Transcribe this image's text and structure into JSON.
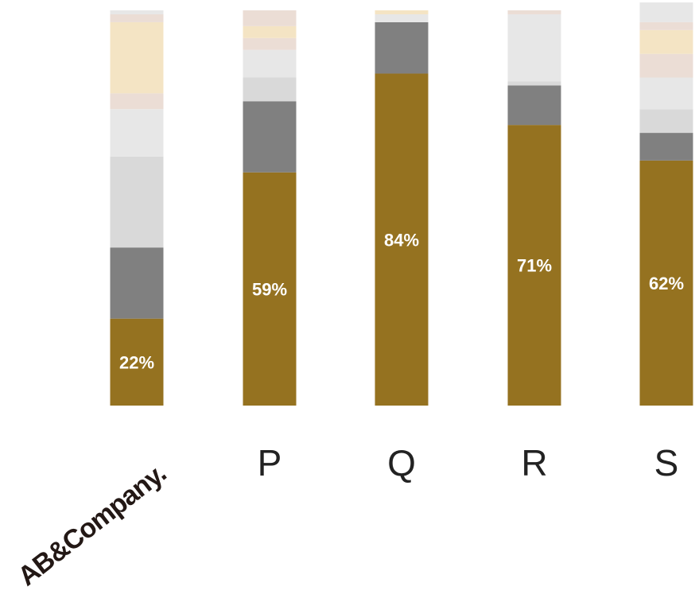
{
  "chart_data": {
    "type": "bar",
    "stacked": true,
    "grid": false,
    "legend": "none",
    "categories": [
      "AB&Company",
      "P",
      "Q",
      "R",
      "S"
    ],
    "category_labels": [
      "",
      "P",
      "Q",
      "R",
      "S"
    ],
    "ylim": [
      0,
      100
    ],
    "series": [
      {
        "color": "#957220",
        "values": [
          22,
          59,
          84,
          71,
          62
        ],
        "labels": [
          "22%",
          "59%",
          "84%",
          "71%",
          "62%"
        ]
      },
      {
        "color": "#808080",
        "values": [
          18,
          18,
          13,
          10,
          7
        ]
      },
      {
        "color": "#D9D9D9",
        "values": [
          23,
          6,
          0,
          1,
          6
        ]
      },
      {
        "color": "#E7E7E7",
        "values": [
          12,
          7,
          2,
          17,
          8
        ]
      },
      {
        "color": "#EBDDD5",
        "values": [
          4,
          3,
          0,
          1,
          6
        ]
      },
      {
        "color": "#F4E4C4",
        "values": [
          18,
          3,
          1,
          0,
          6
        ]
      },
      {
        "color": "#EBDDD5",
        "values": [
          2,
          4,
          0,
          0,
          2
        ]
      },
      {
        "color": "#E7E7E7",
        "values": [
          1,
          0,
          0,
          0,
          5
        ]
      }
    ]
  },
  "logo": {
    "text": "AB&Company."
  },
  "colors": {
    "primary": "#957220",
    "secondary": "#808080",
    "label_text": "#ffffff",
    "axis_text": "#222222"
  }
}
